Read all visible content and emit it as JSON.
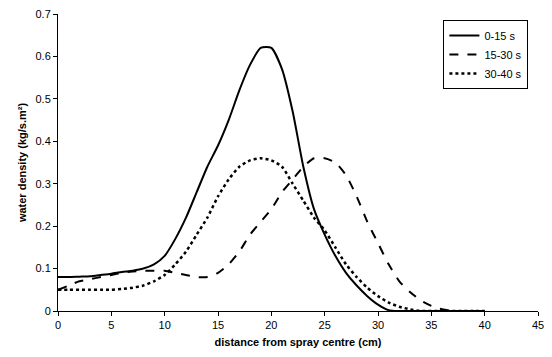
{
  "chart_data": {
    "type": "line",
    "x_label": "distance from spray centre (cm)",
    "y_label": "water density (kg/s.m²)",
    "x": [
      0,
      1,
      2,
      3,
      4,
      5,
      6,
      7,
      8,
      9,
      10,
      11,
      12,
      13,
      14,
      15,
      16,
      17,
      18,
      19,
      20,
      21,
      22,
      23,
      24,
      25,
      26,
      27,
      28,
      29,
      30,
      31,
      32,
      33,
      34,
      35,
      36,
      37,
      38,
      39,
      40
    ],
    "series": [
      {
        "name": "0-15 s",
        "color": "#000000",
        "line_style": "solid",
        "values": [
          0.08,
          0.08,
          0.081,
          0.082,
          0.085,
          0.088,
          0.092,
          0.095,
          0.1,
          0.11,
          0.13,
          0.17,
          0.22,
          0.28,
          0.34,
          0.39,
          0.45,
          0.52,
          0.58,
          0.62,
          0.62,
          0.57,
          0.47,
          0.34,
          0.24,
          0.18,
          0.13,
          0.09,
          0.06,
          0.035,
          0.015,
          0.002,
          0,
          0,
          0,
          0,
          0,
          0,
          0,
          0,
          0
        ]
      },
      {
        "name": "15-30 s",
        "color": "#000000",
        "line_style": "dash",
        "values": [
          0.05,
          0.06,
          0.07,
          0.075,
          0.08,
          0.085,
          0.09,
          0.093,
          0.095,
          0.095,
          0.095,
          0.09,
          0.085,
          0.08,
          0.08,
          0.09,
          0.11,
          0.14,
          0.18,
          0.21,
          0.24,
          0.28,
          0.31,
          0.34,
          0.36,
          0.36,
          0.35,
          0.32,
          0.27,
          0.21,
          0.16,
          0.11,
          0.07,
          0.045,
          0.025,
          0.012,
          0.004,
          0,
          0,
          0,
          0
        ]
      },
      {
        "name": "30-40 s",
        "color": "#000000",
        "line_style": "dot",
        "values": [
          0.05,
          0.05,
          0.05,
          0.05,
          0.05,
          0.05,
          0.052,
          0.055,
          0.06,
          0.07,
          0.085,
          0.11,
          0.14,
          0.18,
          0.22,
          0.27,
          0.31,
          0.34,
          0.355,
          0.36,
          0.355,
          0.34,
          0.3,
          0.26,
          0.22,
          0.19,
          0.15,
          0.11,
          0.08,
          0.055,
          0.035,
          0.02,
          0.01,
          0.004,
          0,
          0,
          0,
          0,
          0,
          0,
          0
        ]
      }
    ],
    "xlim": [
      0,
      45
    ],
    "xticks": [
      0,
      5,
      10,
      15,
      20,
      25,
      30,
      35,
      40,
      45
    ],
    "ylim": [
      0,
      0.7
    ],
    "yticks": [
      0,
      0.1,
      0.2,
      0.3,
      0.4,
      0.5,
      0.6,
      0.7
    ],
    "grid": false,
    "legend": "top right"
  }
}
